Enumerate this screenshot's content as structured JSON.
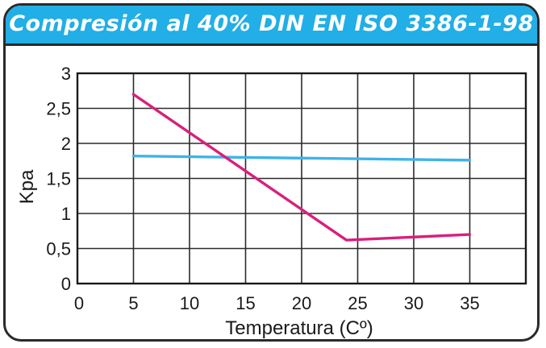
{
  "chart_data": {
    "type": "line",
    "title": "Compresión al 40% DIN EN ISO 3386-1-98",
    "xlabel": "Temperatura (Cº)",
    "ylabel": "Kpa",
    "xlim": [
      0,
      40
    ],
    "ylim": [
      0,
      3
    ],
    "x_ticks": [
      "0",
      "5",
      "10",
      "15",
      "20",
      "25",
      "30",
      "35"
    ],
    "y_ticks": [
      "0",
      "0,5",
      "1",
      "1,5",
      "2",
      "2,5",
      "3"
    ],
    "grid": true,
    "series": [
      {
        "color": "#3fb3e8",
        "x": [
          5,
          35
        ],
        "y": [
          1.82,
          1.76
        ]
      },
      {
        "color": "#d8207c",
        "x": [
          5,
          24,
          35
        ],
        "y": [
          2.7,
          0.62,
          0.7
        ]
      }
    ]
  }
}
